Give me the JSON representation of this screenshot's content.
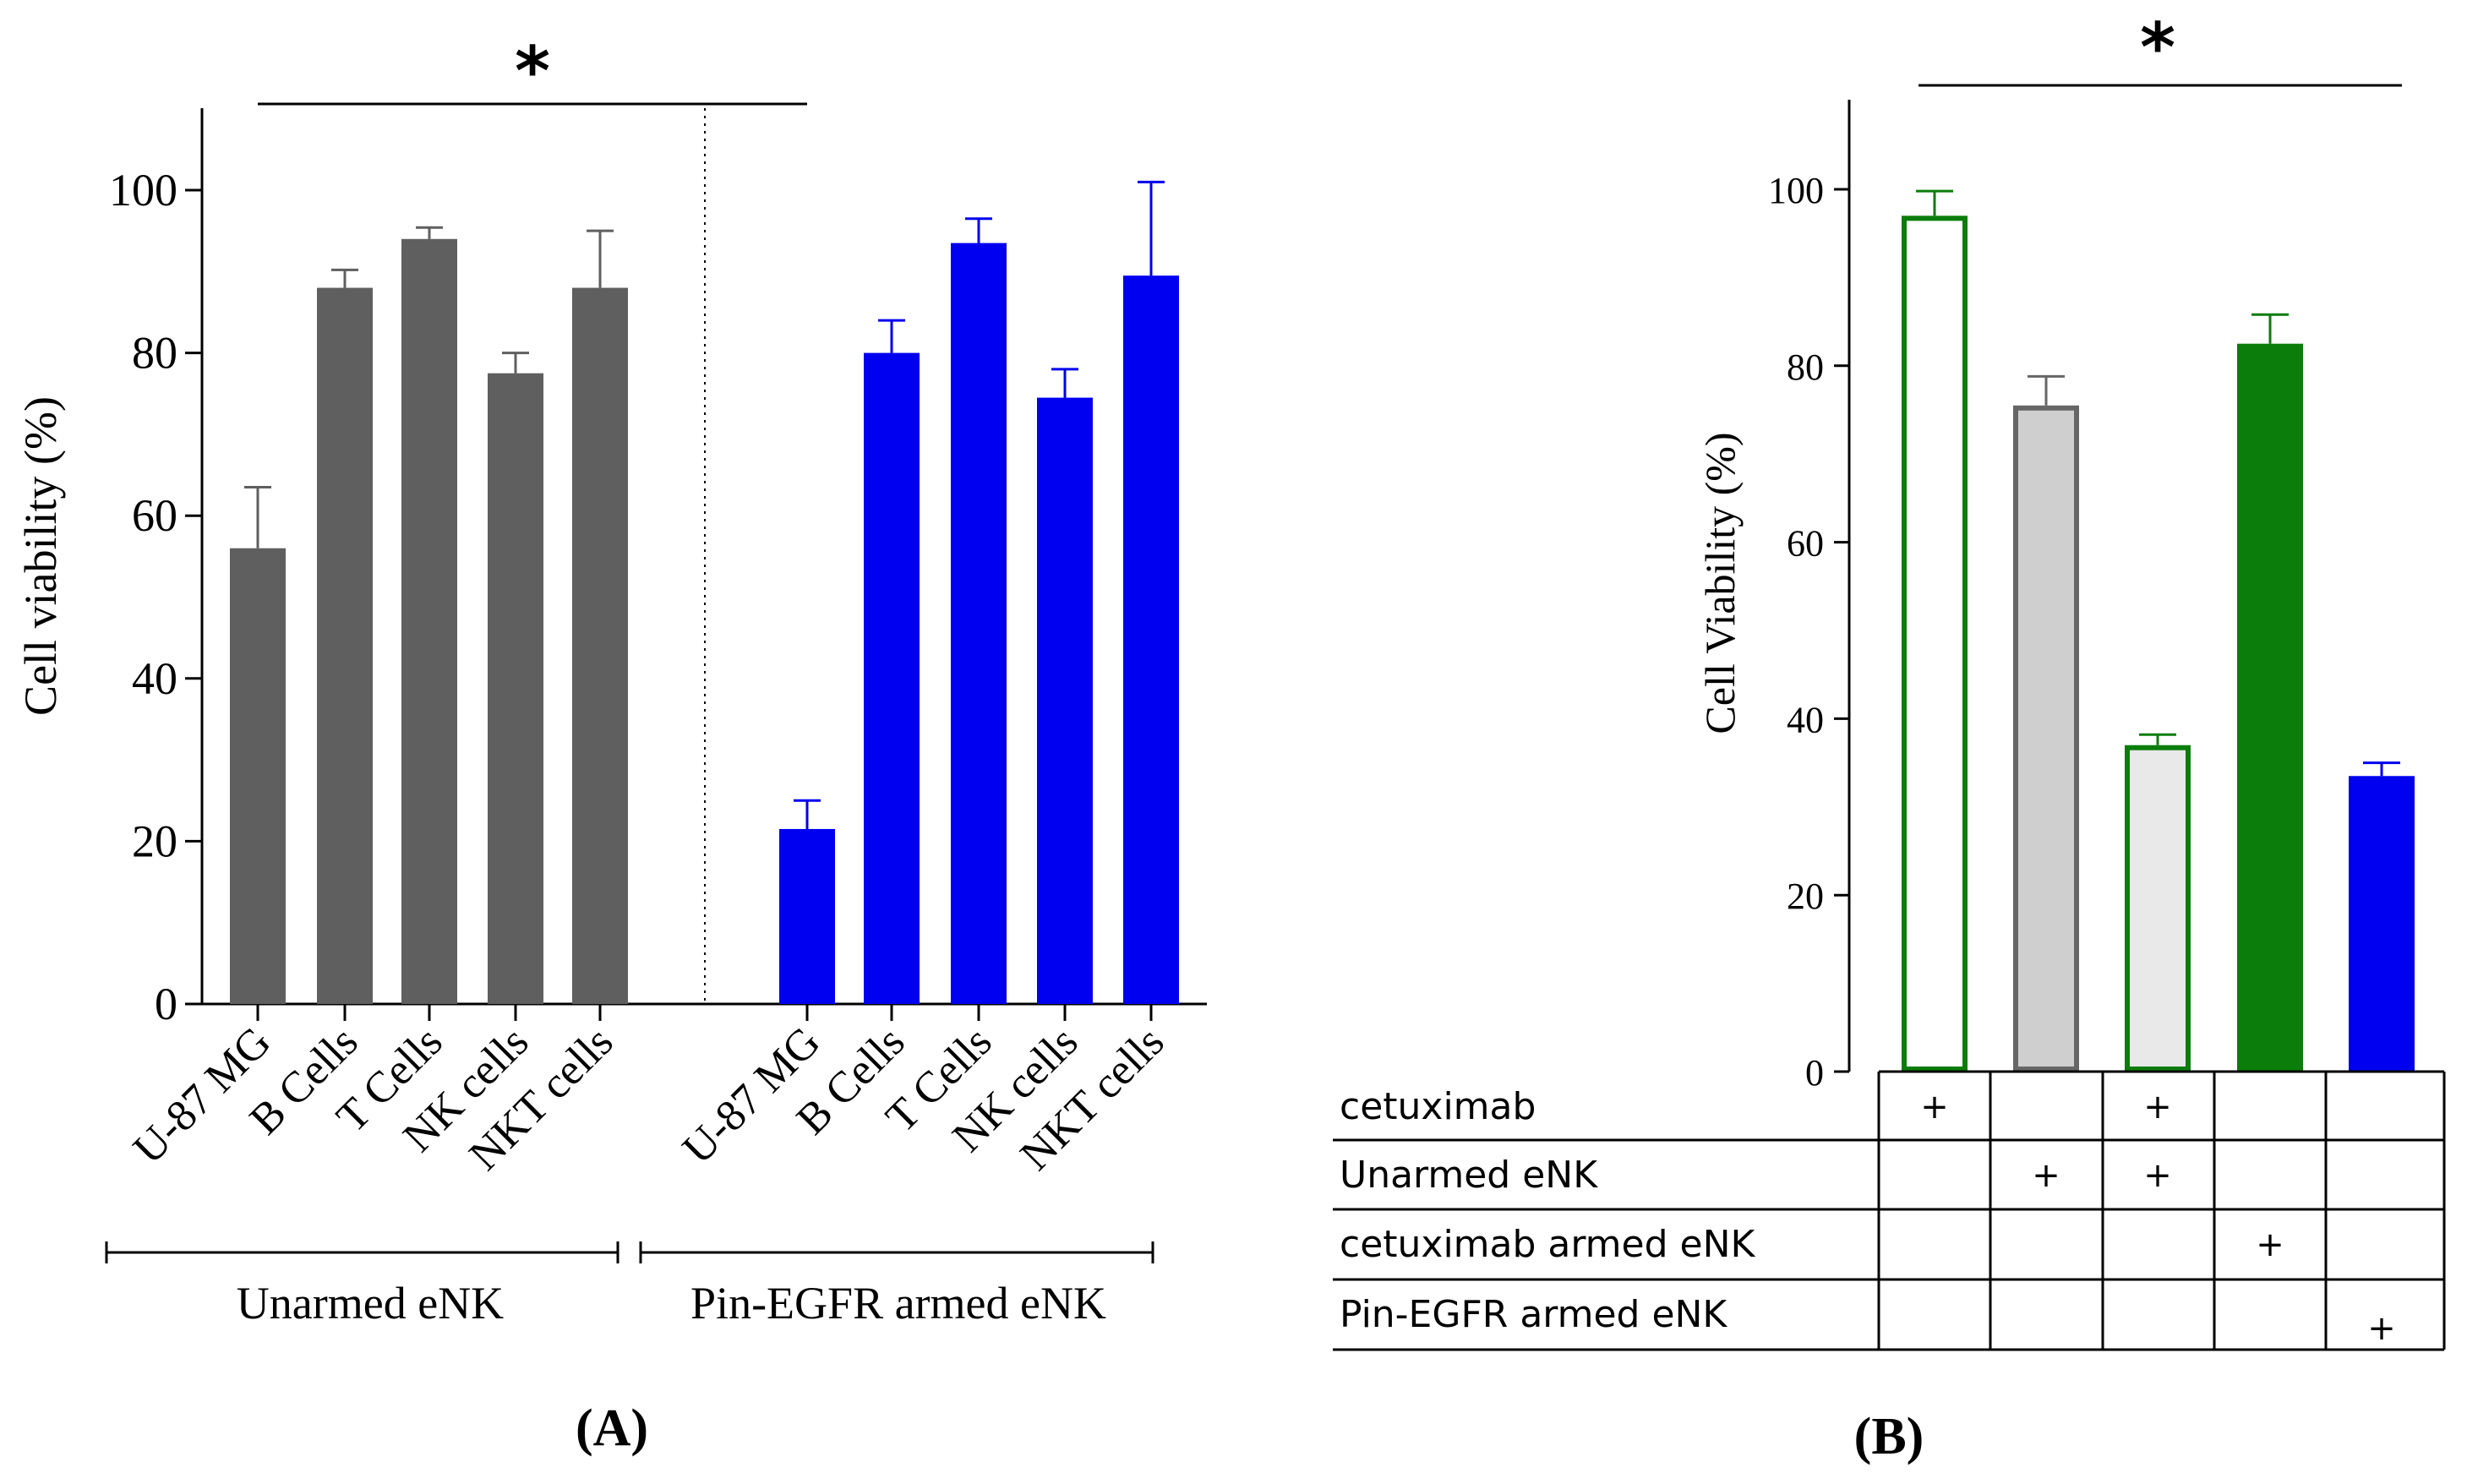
{
  "colors": {
    "gray_bar": "#5f5f5f",
    "blue_bar": "#0000f0",
    "green": "#0a7d0a",
    "light_gray": "#cfcfcf",
    "lighter_gray": "#e9e9e9",
    "axis": "#000000"
  },
  "chart_data": [
    {
      "panel": "A",
      "type": "bar",
      "ylabel": "Cell viability (%)",
      "ylim": [
        0,
        110
      ],
      "yticks": [
        0,
        20,
        40,
        60,
        80,
        100
      ],
      "ytick_labels": [
        "0",
        "20",
        "40",
        "60",
        "80",
        "100"
      ],
      "significance": "*",
      "panel_label": "(A)",
      "groups": [
        {
          "name": "Unarmed eNK",
          "color_key": "gray_bar",
          "categories": [
            "U-87 MG",
            "B Cells",
            "T Cells",
            "NK cells",
            "NKT cells"
          ],
          "values": [
            56,
            88,
            94,
            77.5,
            88
          ],
          "errors": [
            7.5,
            2.2,
            1.4,
            2.5,
            7
          ]
        },
        {
          "name": "Pin-EGFR armed eNK",
          "color_key": "blue_bar",
          "categories": [
            "U-87 MG",
            "B Cells",
            "T Cells",
            "NK cells",
            "NKT cells"
          ],
          "values": [
            21.5,
            80,
            93.5,
            74.5,
            89.5
          ],
          "errors": [
            3.5,
            4,
            3,
            3.5,
            11.5
          ]
        }
      ]
    },
    {
      "panel": "B",
      "type": "bar",
      "ylabel": "Cell Viability (%)",
      "ylim": [
        0,
        110
      ],
      "yticks": [
        0,
        20,
        40,
        60,
        80,
        100
      ],
      "ytick_labels": [
        "0",
        "20",
        "40",
        "60",
        "80",
        "100"
      ],
      "significance": "*",
      "panel_label": "(B)",
      "bars": [
        {
          "value": 97,
          "error": 2.8,
          "style": "green_outline_white"
        },
        {
          "value": 75.5,
          "error": 3.3,
          "style": "gray_outline_lightgray"
        },
        {
          "value": 37,
          "error": 1.2,
          "style": "green_outline_lightergray"
        },
        {
          "value": 82.5,
          "error": 3.3,
          "style": "green_filled"
        },
        {
          "value": 33.5,
          "error": 1.5,
          "style": "blue_filled"
        }
      ],
      "table": {
        "rows": [
          {
            "label": "cetuximab",
            "marks": [
              "+",
              "",
              "+",
              "",
              ""
            ]
          },
          {
            "label": "Unarmed eNK",
            "marks": [
              "",
              "+",
              "+",
              "",
              ""
            ]
          },
          {
            "label": "cetuximab armed eNK",
            "marks": [
              "",
              "",
              "",
              "+",
              ""
            ]
          },
          {
            "label": "Pin-EGFR armed eNK",
            "marks": [
              "",
              "",
              "",
              "",
              "+"
            ]
          }
        ]
      }
    }
  ]
}
